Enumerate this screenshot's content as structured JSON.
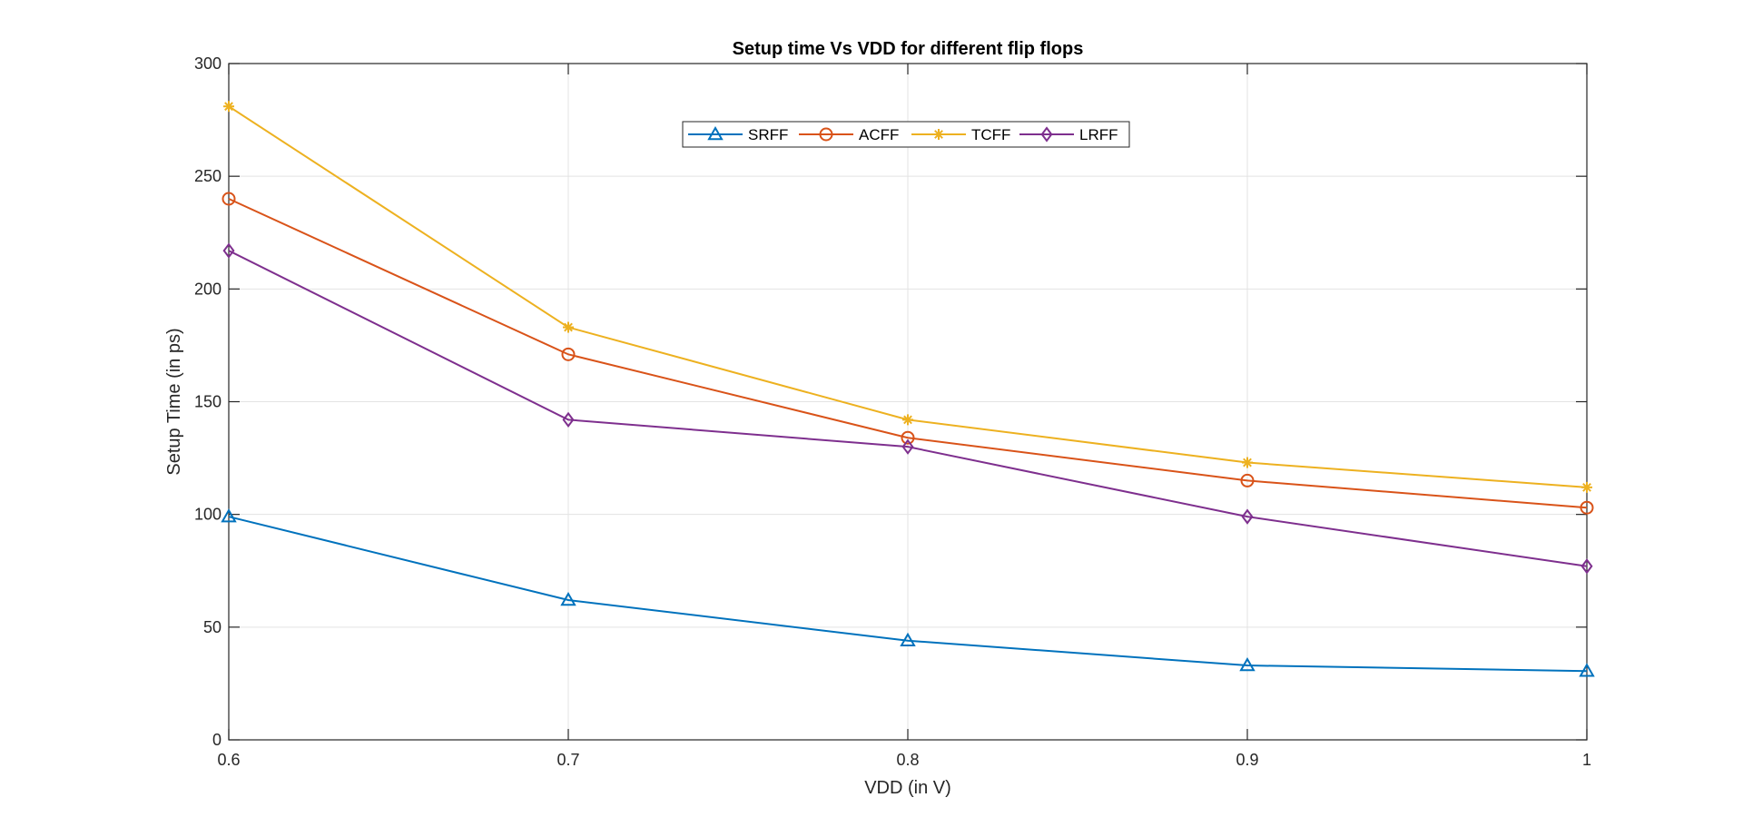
{
  "chart_data": {
    "type": "line",
    "title": "Setup time Vs VDD for different flip flops",
    "xlabel": "VDD (in V)",
    "ylabel": "Setup Time (in ps)",
    "x": [
      0.6,
      0.7,
      0.8,
      0.9,
      1.0
    ],
    "xlim": [
      0.6,
      1.0
    ],
    "ylim": [
      0,
      300
    ],
    "x_ticks": [
      "0.6",
      "0.7",
      "0.8",
      "0.9",
      "1"
    ],
    "y_ticks": [
      "0",
      "50",
      "100",
      "150",
      "200",
      "250",
      "300"
    ],
    "grid": true,
    "legend_position": "top-center",
    "series": [
      {
        "name": "SRFF",
        "color": "#0072BD",
        "marker": "triangle",
        "values": [
          99,
          62,
          44,
          33,
          30.5
        ]
      },
      {
        "name": "ACFF",
        "color": "#D95319",
        "marker": "circle",
        "values": [
          240,
          171,
          134,
          115,
          103
        ]
      },
      {
        "name": "TCFF",
        "color": "#EDB120",
        "marker": "asterisk",
        "values": [
          281,
          183,
          142,
          123,
          112
        ]
      },
      {
        "name": "LRFF",
        "color": "#7E2F8E",
        "marker": "diamond",
        "values": [
          217,
          142,
          130,
          99,
          77
        ]
      }
    ]
  }
}
